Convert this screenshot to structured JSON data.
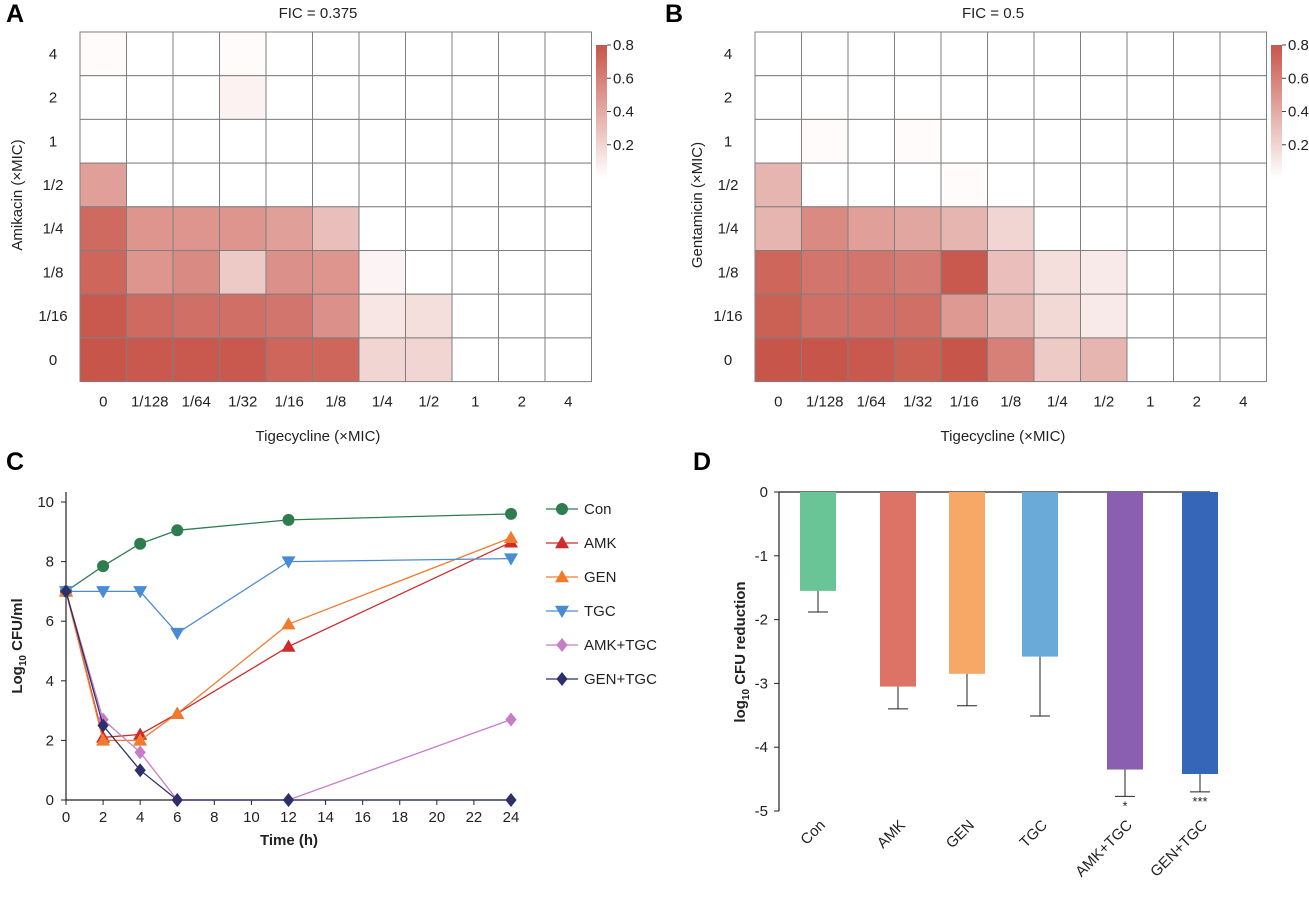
{
  "colors": {
    "heat_high": "#c8554a",
    "grid": "#7f7f7f",
    "Con": "#2e7d4f",
    "AMK": "#d12a2a",
    "GEN": "#f07b2e",
    "TGC": "#4a8cd4",
    "AMK+TGC": "#c77cc7",
    "GEN+TGC": "#2c2f6b",
    "bar_Con": "#69c595",
    "bar_AMK": "#dd7267",
    "bar_GEN": "#f7a866",
    "bar_TGC": "#6aaad9",
    "bar_AMK+TGC": "#8a5fb2",
    "bar_GEN+TGC": "#3566b8"
  },
  "chart_data": [
    {
      "panel": "A",
      "type": "heatmap",
      "title": "FIC = 0.375",
      "xlabel": "Tigecycline (×MIC)",
      "ylabel": "Amikacin (×MIC)",
      "x_categories": [
        "0",
        "1/128",
        "1/64",
        "1/32",
        "1/16",
        "1/8",
        "1/4",
        "1/2",
        "1",
        "2",
        "4"
      ],
      "y_categories": [
        "4",
        "2",
        "1",
        "1/2",
        "1/4",
        "1/8",
        "1/16",
        "0"
      ],
      "color_range": [
        0,
        0.8
      ],
      "colorbar_ticks": [
        "0.8",
        "0.6",
        "0.4",
        "0.2"
      ],
      "values": [
        [
          0.02,
          0,
          0,
          0.02,
          0,
          0,
          0,
          0,
          0,
          0,
          0
        ],
        [
          0,
          0,
          0,
          0.06,
          0,
          0,
          0,
          0,
          0,
          0,
          0
        ],
        [
          0,
          0,
          0,
          0,
          0,
          0,
          0,
          0,
          0,
          0,
          0
        ],
        [
          0.45,
          0,
          0,
          0,
          0,
          0,
          0,
          0,
          0,
          0,
          0
        ],
        [
          0.7,
          0.5,
          0.5,
          0.5,
          0.45,
          0.3,
          0,
          0,
          0,
          0,
          0
        ],
        [
          0.72,
          0.5,
          0.55,
          0.25,
          0.52,
          0.5,
          0.05,
          0,
          0,
          0,
          0
        ],
        [
          0.78,
          0.7,
          0.68,
          0.68,
          0.65,
          0.52,
          0.12,
          0.15,
          0,
          0,
          0
        ],
        [
          0.82,
          0.78,
          0.78,
          0.78,
          0.72,
          0.72,
          0.2,
          0.2,
          0,
          0,
          0
        ]
      ]
    },
    {
      "panel": "B",
      "type": "heatmap",
      "title": "FIC = 0.5",
      "xlabel": "Tigecycline (×MIC)",
      "ylabel": "Gentamicin (×MIC)",
      "x_categories": [
        "0",
        "1/128",
        "1/64",
        "1/32",
        "1/16",
        "1/8",
        "1/4",
        "1/2",
        "1",
        "2",
        "4"
      ],
      "y_categories": [
        "4",
        "2",
        "1",
        "1/2",
        "1/4",
        "1/8",
        "1/16",
        "0"
      ],
      "color_range": [
        0,
        0.8
      ],
      "colorbar_ticks": [
        "0.8",
        "0.6",
        "0.4",
        "0.2"
      ],
      "values": [
        [
          0,
          0,
          0,
          0,
          0,
          0,
          0,
          0,
          0,
          0,
          0
        ],
        [
          0,
          0,
          0,
          0,
          0,
          0,
          0,
          0,
          0,
          0,
          0
        ],
        [
          0,
          0.02,
          0,
          0.02,
          0,
          0,
          0,
          0,
          0,
          0,
          0
        ],
        [
          0.35,
          0,
          0,
          0,
          0.02,
          0,
          0,
          0,
          0,
          0,
          0
        ],
        [
          0.35,
          0.55,
          0.45,
          0.42,
          0.35,
          0.2,
          0,
          0,
          0,
          0,
          0
        ],
        [
          0.72,
          0.65,
          0.65,
          0.62,
          0.78,
          0.3,
          0.15,
          0.1,
          0,
          0,
          0
        ],
        [
          0.75,
          0.68,
          0.68,
          0.68,
          0.48,
          0.35,
          0.18,
          0.1,
          0,
          0,
          0
        ],
        [
          0.82,
          0.85,
          0.78,
          0.75,
          0.8,
          0.6,
          0.25,
          0.35,
          0,
          0,
          0
        ]
      ]
    },
    {
      "panel": "C",
      "type": "line",
      "xlabel": "Time (h)",
      "ylabel": "Log10 CFU/ml",
      "ylabel_parts": [
        "Log",
        "10",
        " CFU/ml"
      ],
      "xlim": [
        0,
        24
      ],
      "ylim": [
        0,
        10
      ],
      "xticks": [
        "0",
        "2",
        "4",
        "6",
        "8",
        "10",
        "12",
        "14",
        "16",
        "18",
        "20",
        "22",
        "24"
      ],
      "yticks": [
        "0",
        "2",
        "4",
        "6",
        "8",
        "10"
      ],
      "series": [
        {
          "name": "Con",
          "marker": "circle",
          "x": [
            0,
            2,
            4,
            6,
            12,
            24
          ],
          "y": [
            7.0,
            7.85,
            8.6,
            9.05,
            9.4,
            9.6
          ]
        },
        {
          "name": "AMK",
          "marker": "triangle-up",
          "x": [
            0,
            2,
            4,
            6,
            12,
            24
          ],
          "y": [
            7.0,
            2.1,
            2.2,
            2.9,
            5.15,
            8.65
          ]
        },
        {
          "name": "GEN",
          "marker": "triangle-up",
          "x": [
            0,
            2,
            4,
            6,
            12,
            24
          ],
          "y": [
            7.0,
            2.0,
            2.0,
            2.9,
            5.9,
            8.8
          ]
        },
        {
          "name": "TGC",
          "marker": "triangle-down",
          "x": [
            0,
            2,
            4,
            6,
            12,
            24
          ],
          "y": [
            7.0,
            7.0,
            7.0,
            5.6,
            8.0,
            8.1
          ]
        },
        {
          "name": "AMK+TGC",
          "marker": "diamond",
          "x": [
            0,
            2,
            4,
            6,
            12,
            24
          ],
          "y": [
            7.0,
            2.7,
            1.6,
            0.0,
            0.0,
            2.7
          ]
        },
        {
          "name": "GEN+TGC",
          "marker": "diamond",
          "x": [
            0,
            2,
            4,
            6,
            12,
            24
          ],
          "y": [
            7.0,
            2.5,
            1.0,
            0.0,
            0.0,
            0.0
          ]
        }
      ]
    },
    {
      "panel": "D",
      "type": "bar",
      "ylabel": "log10 CFU reduction",
      "ylabel_parts": [
        "log",
        "10",
        " CFU reduction"
      ],
      "ylim": [
        -5,
        0
      ],
      "yticks": [
        "0",
        "-1",
        "-2",
        "-3",
        "-4",
        "-5"
      ],
      "categories": [
        "Con",
        "AMK",
        "GEN",
        "TGC",
        "AMK+TGC",
        "GEN+TGC"
      ],
      "values": [
        -1.55,
        -3.05,
        -2.85,
        -2.58,
        -4.35,
        -4.42
      ],
      "errors": [
        0.33,
        0.35,
        0.5,
        0.93,
        0.42,
        0.28
      ],
      "significance": [
        "",
        "",
        "",
        "",
        "*",
        "***"
      ]
    }
  ],
  "panel_labels": [
    "A",
    "B",
    "C",
    "D"
  ]
}
